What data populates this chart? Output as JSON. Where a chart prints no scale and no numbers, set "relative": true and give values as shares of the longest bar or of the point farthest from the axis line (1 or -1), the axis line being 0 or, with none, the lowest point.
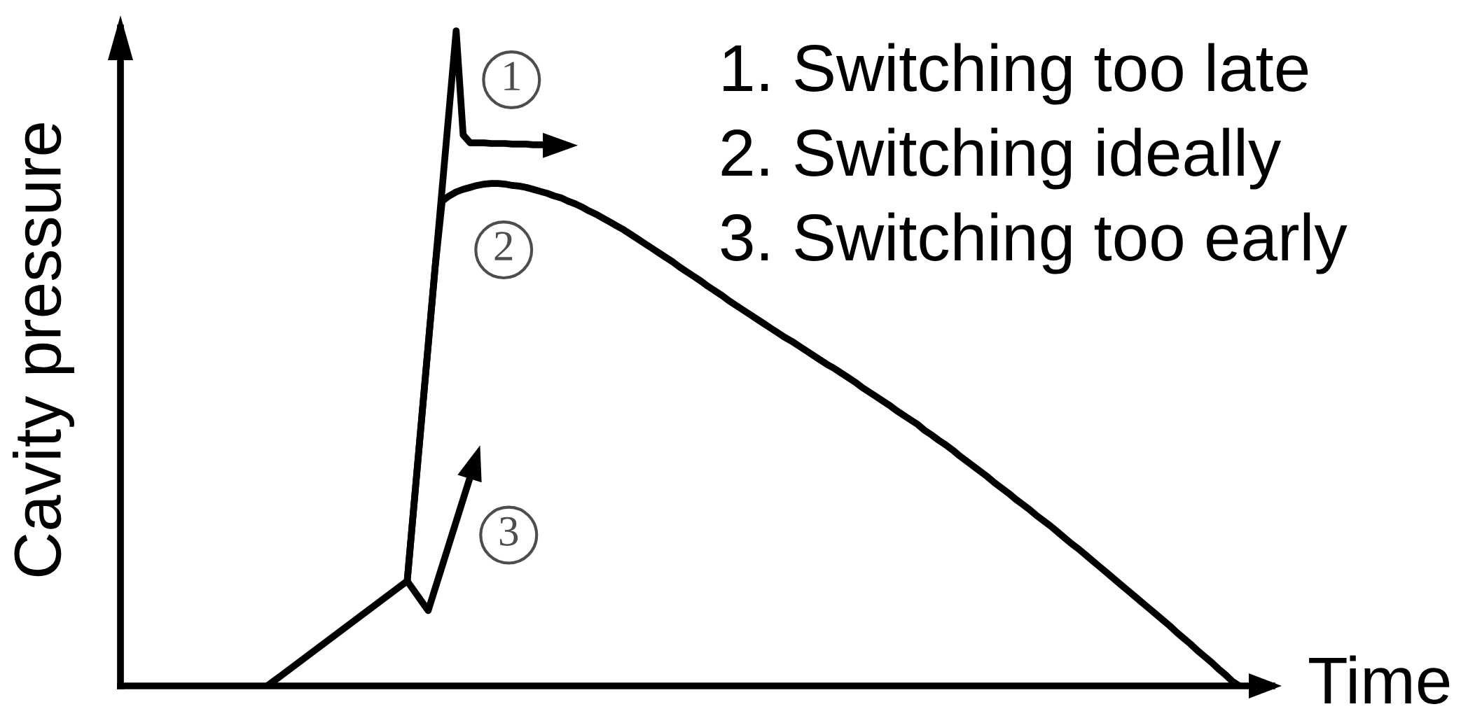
{
  "chart_data": {
    "type": "line",
    "relative": true,
    "xlabel": "Time",
    "ylabel": "Cavity pressure",
    "categories": [
      null,
      null,
      null,
      null,
      null,
      null,
      null,
      null,
      null,
      null,
      null,
      null,
      null,
      null,
      null,
      null,
      null,
      null,
      null,
      null,
      null,
      null,
      null,
      null,
      null,
      null,
      null,
      null,
      null,
      null,
      null,
      null,
      null,
      null,
      null,
      null,
      null,
      null,
      null,
      null,
      null,
      null,
      null,
      null,
      null,
      null,
      null,
      null,
      null,
      null,
      null,
      null,
      null,
      null,
      null,
      null,
      null,
      null,
      null,
      null,
      null,
      null,
      null,
      null,
      null,
      null,
      null,
      null,
      null,
      null,
      null,
      null,
      null,
      null,
      null,
      null,
      null,
      null,
      null,
      null,
      null,
      null,
      null,
      null,
      null,
      null,
      null,
      null,
      null,
      null,
      null,
      null,
      null,
      null,
      null,
      null,
      null,
      null,
      null,
      null,
      null,
      null,
      null,
      null,
      null,
      null,
      null,
      null,
      null,
      null,
      null,
      null,
      null,
      null,
      null,
      null,
      null,
      null,
      null,
      null,
      null,
      null,
      null,
      null,
      null,
      null,
      null,
      null,
      null,
      null,
      null,
      null,
      null,
      null,
      null,
      null,
      null,
      null,
      null,
      null,
      null,
      null,
      null,
      null,
      null,
      null,
      null,
      null,
      null,
      null,
      null,
      null,
      null,
      null,
      null,
      null,
      null,
      null,
      null,
      null,
      null
    ],
    "series": [
      {
        "name": "1",
        "color": "#000000",
        "values": [
          null,
          null,
          null,
          null,
          null,
          null,
          null,
          null,
          null,
          null,
          null,
          null,
          null,
          null,
          null,
          null,
          null,
          null,
          null,
          null,
          null,
          null,
          null,
          null,
          null,
          null,
          null,
          null,
          null,
          null,
          null,
          null,
          null,
          null,
          null,
          null,
          null,
          null,
          null,
          null,
          null,
          0.16,
          0.28,
          0.4,
          0.52,
          0.64,
          0.76,
          0.88,
          1.0,
          0.841,
          0.829,
          0.829,
          0.829,
          0.828,
          0.828,
          0.828,
          0.827,
          0.827,
          0.827,
          0.826,
          0.826,
          0.826,
          0.825,
          0.825,
          0.825,
          null,
          null,
          null,
          null,
          null,
          null,
          null,
          null,
          null,
          null,
          null,
          null,
          null,
          null,
          null,
          null,
          null,
          null,
          null,
          null,
          null,
          null,
          null,
          null,
          null,
          null,
          null,
          null,
          null,
          null,
          null,
          null,
          null,
          null,
          null,
          null,
          null,
          null,
          null,
          null,
          null,
          null,
          null,
          null,
          null,
          null,
          null,
          null,
          null,
          null,
          null,
          null,
          null,
          null,
          null,
          null,
          null,
          null,
          null,
          null,
          null,
          null,
          null,
          null,
          null,
          null,
          null,
          null,
          null,
          null,
          null,
          null,
          null,
          null,
          null,
          null,
          null,
          null,
          null,
          null,
          null,
          null,
          null,
          null,
          null,
          null,
          null,
          null,
          null,
          null,
          null,
          null,
          null,
          null,
          null,
          null
        ]
      },
      {
        "name": "2",
        "color": "#000000",
        "values": [
          null,
          null,
          null,
          null,
          null,
          null,
          null,
          null,
          null,
          null,
          null,
          null,
          null,
          null,
          null,
          null,
          null,
          null,
          null,
          null,
          null,
          0,
          0.008,
          0.016,
          0.024,
          0.032,
          0.04,
          0.048,
          0.056,
          0.064,
          0.072,
          0.08,
          0.088,
          0.096,
          0.104,
          0.112,
          0.12,
          0.128,
          0.136,
          0.144,
          0.152,
          0.16,
          0.28,
          0.4,
          0.52,
          0.64,
          0.74,
          0.748,
          0.754,
          0.758,
          0.761,
          0.764,
          0.766,
          0.767,
          0.767,
          0.766,
          0.764,
          0.763,
          0.761,
          0.758,
          0.755,
          0.752,
          0.748,
          0.745,
          0.74,
          0.736,
          0.731,
          0.725,
          0.72,
          0.714,
          0.708,
          0.702,
          0.696,
          0.689,
          0.682,
          0.675,
          0.668,
          0.661,
          0.654,
          0.647,
          0.639,
          0.632,
          0.625,
          0.618,
          0.61,
          0.603,
          0.596,
          0.588,
          0.581,
          0.574,
          0.567,
          0.56,
          0.553,
          0.546,
          0.539,
          0.532,
          0.526,
          0.519,
          0.512,
          0.505,
          0.498,
          0.491,
          0.485,
          0.478,
          0.471,
          0.464,
          0.456,
          0.449,
          0.442,
          0.435,
          0.428,
          0.42,
          0.413,
          0.406,
          0.399,
          0.39,
          0.383,
          0.375,
          0.368,
          0.36,
          0.351,
          0.343,
          0.335,
          0.327,
          0.319,
          0.31,
          0.302,
          0.294,
          0.285,
          0.277,
          0.269,
          0.26,
          0.252,
          0.244,
          0.235,
          0.226,
          0.217,
          0.209,
          0.2,
          0.191,
          0.182,
          0.173,
          0.164,
          0.155,
          0.146,
          0.137,
          0.128,
          0.119,
          0.11,
          0.101,
          0.092,
          0.082,
          0.073,
          0.064,
          0.054,
          0.045,
          0.036,
          0.026,
          0.017,
          0.007,
          0
        ]
      },
      {
        "name": "3",
        "color": "#000000",
        "values": [
          null,
          null,
          null,
          null,
          null,
          null,
          null,
          null,
          null,
          null,
          null,
          null,
          null,
          null,
          null,
          null,
          null,
          null,
          null,
          null,
          null,
          null,
          null,
          null,
          null,
          null,
          null,
          null,
          null,
          null,
          null,
          null,
          null,
          null,
          null,
          null,
          null,
          null,
          null,
          null,
          null,
          0.16,
          0.145,
          0.13,
          0.115,
          0.149,
          0.183,
          0.217,
          0.251,
          0.285,
          0.319,
          0.353,
          null,
          null,
          null,
          null,
          null,
          null,
          null,
          null,
          null,
          null,
          null,
          null,
          null,
          null,
          null,
          null,
          null,
          null,
          null,
          null,
          null,
          null,
          null,
          null,
          null,
          null,
          null,
          null,
          null,
          null,
          null,
          null,
          null,
          null,
          null,
          null,
          null,
          null,
          null,
          null,
          null,
          null,
          null,
          null,
          null,
          null,
          null,
          null,
          null,
          null,
          null,
          null,
          null,
          null,
          null,
          null,
          null,
          null,
          null,
          null,
          null,
          null,
          null,
          null,
          null,
          null,
          null,
          null,
          null,
          null,
          null,
          null,
          null,
          null,
          null,
          null,
          null,
          null,
          null,
          null,
          null,
          null,
          null,
          null,
          null,
          null,
          null,
          null,
          null,
          null,
          null,
          null,
          null,
          null,
          null,
          null,
          null,
          null,
          null,
          null,
          null,
          null,
          null,
          null,
          null,
          null,
          null,
          null,
          null
        ]
      }
    ],
    "annotations": [
      "1. Switching too late",
      "2. Switching ideally",
      "3. Switching too early"
    ]
  }
}
